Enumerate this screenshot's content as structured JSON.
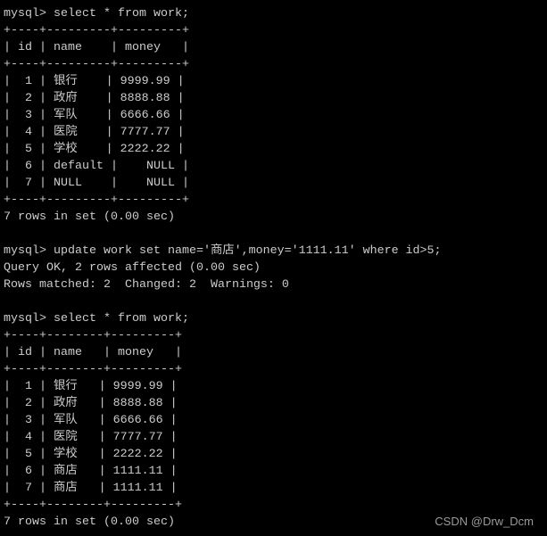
{
  "terminal": {
    "background": "#000000",
    "foreground": "#cccccc",
    "lines": [
      "mysql> select * from work;",
      "+----+---------+---------+",
      "| id | name    | money   |",
      "+----+---------+---------+",
      "|  1 | 银行    | 9999.99 |",
      "|  2 | 政府    | 8888.88 |",
      "|  3 | 军队    | 6666.66 |",
      "|  4 | 医院    | 7777.77 |",
      "|  5 | 学校    | 2222.22 |",
      "|  6 | default |    NULL |",
      "|  7 | NULL    |    NULL |",
      "+----+---------+---------+",
      "7 rows in set (0.00 sec)",
      "",
      "mysql> update work set name='商店',money='1111.11' where id>5;",
      "Query OK, 2 rows affected (0.00 sec)",
      "Rows matched: 2  Changed: 2  Warnings: 0",
      "",
      "mysql> select * from work;",
      "+----+--------+---------+",
      "| id | name   | money   |",
      "+----+--------+---------+",
      "|  1 | 银行   | 9999.99 |",
      "|  2 | 政府   | 8888.88 |",
      "|  3 | 军队   | 6666.66 |",
      "|  4 | 医院   | 7777.77 |",
      "|  5 | 学校   | 2222.22 |",
      "|  6 | 商店   | 1111.11 |",
      "|  7 | 商店   | 1111.11 |",
      "+----+--------+---------+",
      "7 rows in set (0.00 sec)"
    ]
  },
  "watermark": "CSDN @Drw_Dcm"
}
